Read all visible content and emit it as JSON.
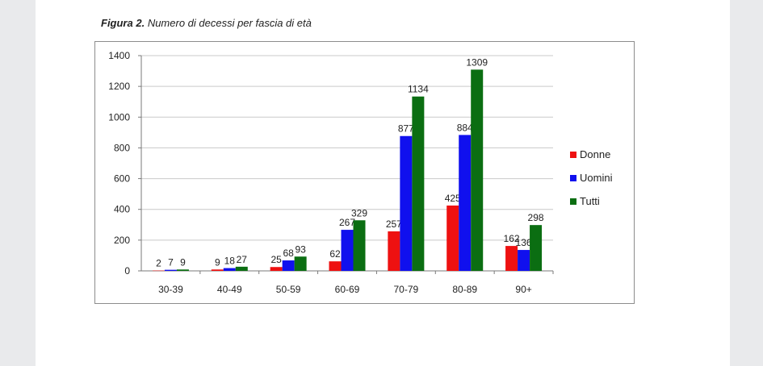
{
  "caption": {
    "label": "Figura 2.",
    "text": "Numero di decessi per fascia di età"
  },
  "chart_data": {
    "type": "bar",
    "title": "",
    "xlabel": "",
    "ylabel": "",
    "ylim": [
      0,
      1400
    ],
    "yticks": [
      0,
      200,
      400,
      600,
      800,
      1000,
      1200,
      1400
    ],
    "grid": true,
    "legend_position": "right",
    "categories": [
      "30-39",
      "40-49",
      "50-59",
      "60-69",
      "70-79",
      "80-89",
      "90+"
    ],
    "series": [
      {
        "name": "Donne",
        "color": "#ee1111",
        "values": [
          2,
          9,
          25,
          62,
          257,
          425,
          162
        ],
        "labels": [
          "2",
          "9",
          "25",
          "62",
          "257",
          "425",
          "162"
        ]
      },
      {
        "name": "Uomini",
        "color": "#1010ee",
        "values": [
          7,
          18,
          68,
          267,
          877,
          884,
          136
        ],
        "labels": [
          "7",
          "18",
          "68",
          "267",
          "877",
          "884",
          "136"
        ]
      },
      {
        "name": "Tutti",
        "color": "#0b6e12",
        "values": [
          9,
          27,
          93,
          329,
          1134,
          1309,
          298
        ],
        "labels": [
          "9",
          "27",
          "93",
          "329",
          "1134",
          "1309",
          "298"
        ]
      }
    ]
  }
}
